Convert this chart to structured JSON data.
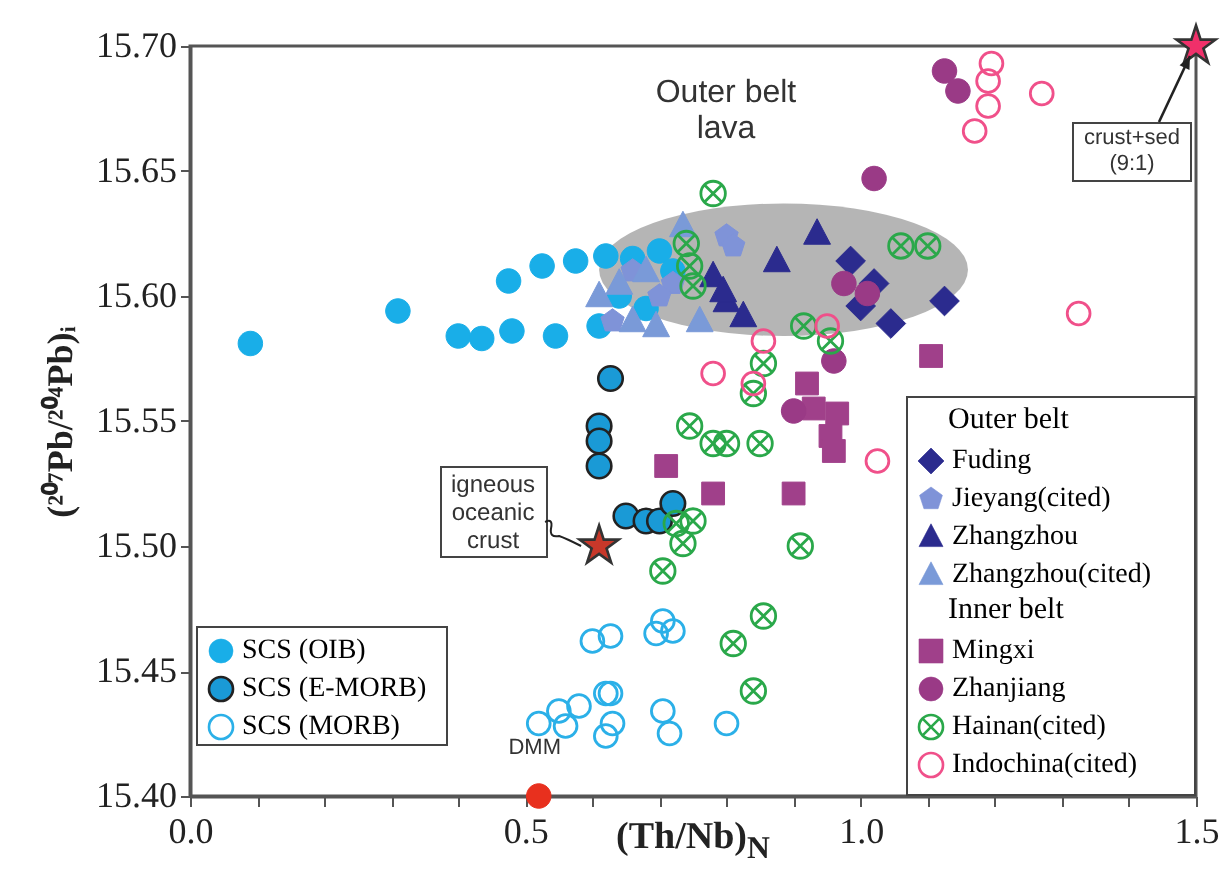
{
  "chart_data": {
    "type": "scatter",
    "xlabel": "(Th/Nb)$_{N}$",
    "ylabel": "(²⁰⁷Pb/²⁰⁴Pb)ᵢ",
    "xlim": [
      0,
      1.5
    ],
    "ylim": [
      15.4,
      15.7
    ],
    "xticks": [
      {
        "value": 0,
        "label": "0.0"
      },
      {
        "value": 0.1,
        "label": null
      },
      {
        "value": 0.2,
        "label": null
      },
      {
        "value": 0.3,
        "label": null
      },
      {
        "value": 0.4,
        "label": null
      },
      {
        "value": 0.5,
        "label": "0.5"
      },
      {
        "value": 0.6,
        "label": null
      },
      {
        "value": 0.7,
        "label": null
      },
      {
        "value": 0.8,
        "label": null
      },
      {
        "value": 0.9,
        "label": null
      },
      {
        "value": 1,
        "label": "1.0"
      },
      {
        "value": 1.1,
        "label": null
      },
      {
        "value": 1.2,
        "label": null
      },
      {
        "value": 1.3,
        "label": null
      },
      {
        "value": 1.4,
        "label": null
      },
      {
        "value": 1.5,
        "label": "1.5"
      }
    ],
    "yticks": [
      {
        "value": 15.4,
        "label": "15.40"
      },
      {
        "value": 15.45,
        "label": "15.45"
      },
      {
        "value": 15.5,
        "label": "15.50"
      },
      {
        "value": 15.55,
        "label": "15.55"
      },
      {
        "value": 15.6,
        "label": "15.60"
      },
      {
        "value": 15.65,
        "label": "15.65"
      },
      {
        "value": 15.7,
        "label": "15.70"
      }
    ],
    "grid": false,
    "legend": "bottom right",
    "annotations": [
      "Outer belt",
      "Inner belt",
      "Outer belt lava",
      {
        "text": "DMM",
        "x": 0.52,
        "y": 15.4
      },
      "igneous oceanic crust",
      "crust+sed (9:1)"
    ],
    "series": [
      {
        "name": "SCS (OIB)",
        "color": "#19aee8",
        "marker": "circle",
        "x": [
          0.09,
          0.31,
          0.4,
          0.435,
          0.48,
          0.475,
          0.525,
          0.545,
          0.575,
          0.61,
          0.62,
          0.66,
          0.7,
          0.64,
          0.68,
          0.72
        ],
        "values": [
          15.581,
          15.594,
          15.584,
          15.583,
          15.586,
          15.606,
          15.612,
          15.584,
          15.614,
          15.588,
          15.616,
          15.615,
          15.618,
          15.6,
          15.595,
          15.61
        ]
      },
      {
        "name": "SCS (E-MORB)",
        "color": "#1a9ad6",
        "marker": "circle-edged",
        "x": [
          0.61,
          0.61,
          0.61,
          0.627,
          0.65,
          0.68,
          0.7,
          0.72
        ],
        "values": [
          15.548,
          15.542,
          15.532,
          15.567,
          15.512,
          15.51,
          15.51,
          15.517
        ]
      },
      {
        "name": "SCS (MORB)",
        "color": "#2bb0e8",
        "marker": "circle-open",
        "x": [
          0.6,
          0.52,
          0.55,
          0.56,
          0.58,
          0.62,
          0.62,
          0.627,
          0.627,
          0.63,
          0.705,
          0.72,
          0.695,
          0.705,
          0.715,
          0.8
        ],
        "values": [
          15.462,
          15.429,
          15.434,
          15.428,
          15.436,
          15.441,
          15.424,
          15.464,
          15.441,
          15.429,
          15.47,
          15.466,
          15.465,
          15.434,
          15.425,
          15.429
        ]
      },
      {
        "name": "Fuding",
        "color": "#2b2b8e",
        "marker": "diamond",
        "x": [
          0.985,
          1.0,
          1.045,
          1.125,
          1.02
        ],
        "values": [
          15.614,
          15.596,
          15.589,
          15.598,
          15.605
        ]
      },
      {
        "name": "Jieyang(cited)",
        "color": "#7f93d8",
        "x": [
          0.8,
          0.81,
          0.66,
          0.72,
          0.63,
          0.7
        ],
        "values": [
          15.624,
          15.62,
          15.61,
          15.605,
          15.59,
          15.6
        ]
      },
      {
        "name": "Zhangzhou",
        "color": "#2b2b8e",
        "marker": "triangle",
        "x": [
          0.935,
          0.875,
          0.78,
          0.8,
          0.825,
          0.795
        ],
        "values": [
          15.625,
          15.614,
          15.608,
          15.598,
          15.592,
          15.602
        ]
      },
      {
        "name": "Zhangzhou(cited)",
        "color": "#7a9ad8",
        "marker": "triangle",
        "x": [
          0.61,
          0.64,
          0.66,
          0.68,
          0.695,
          0.735,
          0.76
        ],
        "values": [
          15.6,
          15.605,
          15.59,
          15.61,
          15.588,
          15.628,
          15.59
        ]
      },
      {
        "name": "Mingxi",
        "color": "#a0408a",
        "marker": "square",
        "x": [
          1.105,
          0.92,
          0.965,
          0.71,
          0.78,
          0.9,
          0.955,
          0.96,
          0.93
        ],
        "values": [
          15.576,
          15.565,
          15.553,
          15.532,
          15.521,
          15.521,
          15.544,
          15.538,
          15.555
        ]
      },
      {
        "name": "Zhanjiang",
        "color": "#9a3a86",
        "marker": "circle",
        "x": [
          1.125,
          1.145,
          1.02,
          0.975,
          1.01,
          0.96,
          0.9
        ],
        "values": [
          15.69,
          15.682,
          15.647,
          15.605,
          15.601,
          15.574,
          15.554
        ]
      },
      {
        "name": "Hainan(cited)",
        "color": "#2aa84a",
        "marker": "cross",
        "x": [
          0.78,
          1.06,
          1.1,
          0.74,
          0.745,
          0.75,
          0.915,
          0.955,
          0.855,
          0.84,
          0.745,
          0.78,
          0.8,
          0.85,
          0.75,
          0.735,
          0.705,
          0.855,
          0.81,
          0.84,
          0.91,
          0.725
        ],
        "values": [
          15.641,
          15.62,
          15.62,
          15.621,
          15.612,
          15.604,
          15.588,
          15.582,
          15.573,
          15.561,
          15.548,
          15.541,
          15.541,
          15.541,
          15.51,
          15.501,
          15.49,
          15.472,
          15.461,
          15.442,
          15.5,
          15.509
        ]
      },
      {
        "name": "Indochina(cited)",
        "color": "#f0508a",
        "marker": "circle-open",
        "x": [
          1.195,
          1.19,
          1.19,
          1.17,
          1.27,
          1.325,
          0.855,
          0.78,
          0.84,
          0.95,
          1.025
        ],
        "values": [
          15.693,
          15.686,
          15.676,
          15.666,
          15.681,
          15.593,
          15.582,
          15.569,
          15.565,
          15.588,
          15.534
        ]
      },
      {
        "color": "#e8301e",
        "marker": "circle",
        "x": [
          0.52
        ],
        "values": [
          15.4
        ]
      },
      {
        "color": "#c8382a",
        "marker": "star",
        "x": [
          0.61
        ],
        "values": [
          15.5
        ]
      },
      {
        "color": "#f0306a",
        "marker": "star",
        "x": [
          1.5
        ],
        "values": [
          15.7
        ]
      }
    ]
  }
}
